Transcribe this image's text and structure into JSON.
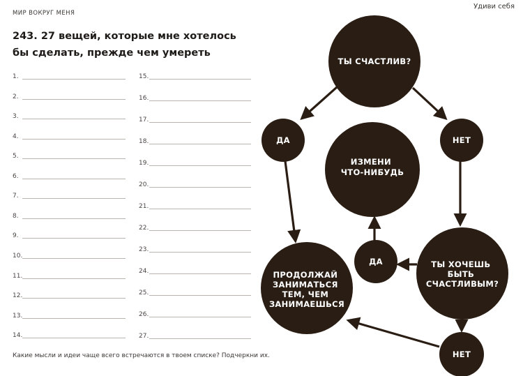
{
  "header": {
    "section": "МИР ВОКРУГ МЕНЯ",
    "book": "Удиви себя"
  },
  "title": {
    "line1": "243. 27 вещей, которые мне хотелось",
    "line2": "бы сделать, прежде чем умереть"
  },
  "list": {
    "left": [
      "1.",
      "2.",
      "3.",
      "4.",
      "5.",
      "6.",
      "7.",
      "8.",
      "9.",
      "10.",
      "11.",
      "12.",
      "13.",
      "14."
    ],
    "right": [
      "15.",
      "16.",
      "17.",
      "18.",
      "19.",
      "20.",
      "21.",
      "22.",
      "23.",
      "24.",
      "25.",
      "26.",
      "27."
    ]
  },
  "footer": {
    "question": "Какие мысли и идеи чаще всего встречаются в твоем списке? Подчеркни их."
  },
  "flowchart": {
    "colors": {
      "circle": "#2a1d14",
      "arrow": "#2a1d14",
      "text": "#ffffff"
    },
    "nodes": {
      "happy_question": "ТЫ СЧАСТЛИВ?",
      "yes_top": "ДА",
      "no_top": "НЕТ",
      "change": [
        "ИЗМЕНИ",
        "ЧТО-НИБУДЬ"
      ],
      "continue": [
        "ПРОДОЛЖАЙ",
        "ЗАНИМАТЬСЯ",
        "ТЕМ, ЧЕМ",
        "ЗАНИМАЕШЬСЯ"
      ],
      "yes_mid": "ДА",
      "want_happy": [
        "ТЫ ХОЧЕШЬ",
        "БЫТЬ",
        "СЧАСТЛИВЫМ?"
      ],
      "no_bottom": "НЕТ"
    }
  }
}
